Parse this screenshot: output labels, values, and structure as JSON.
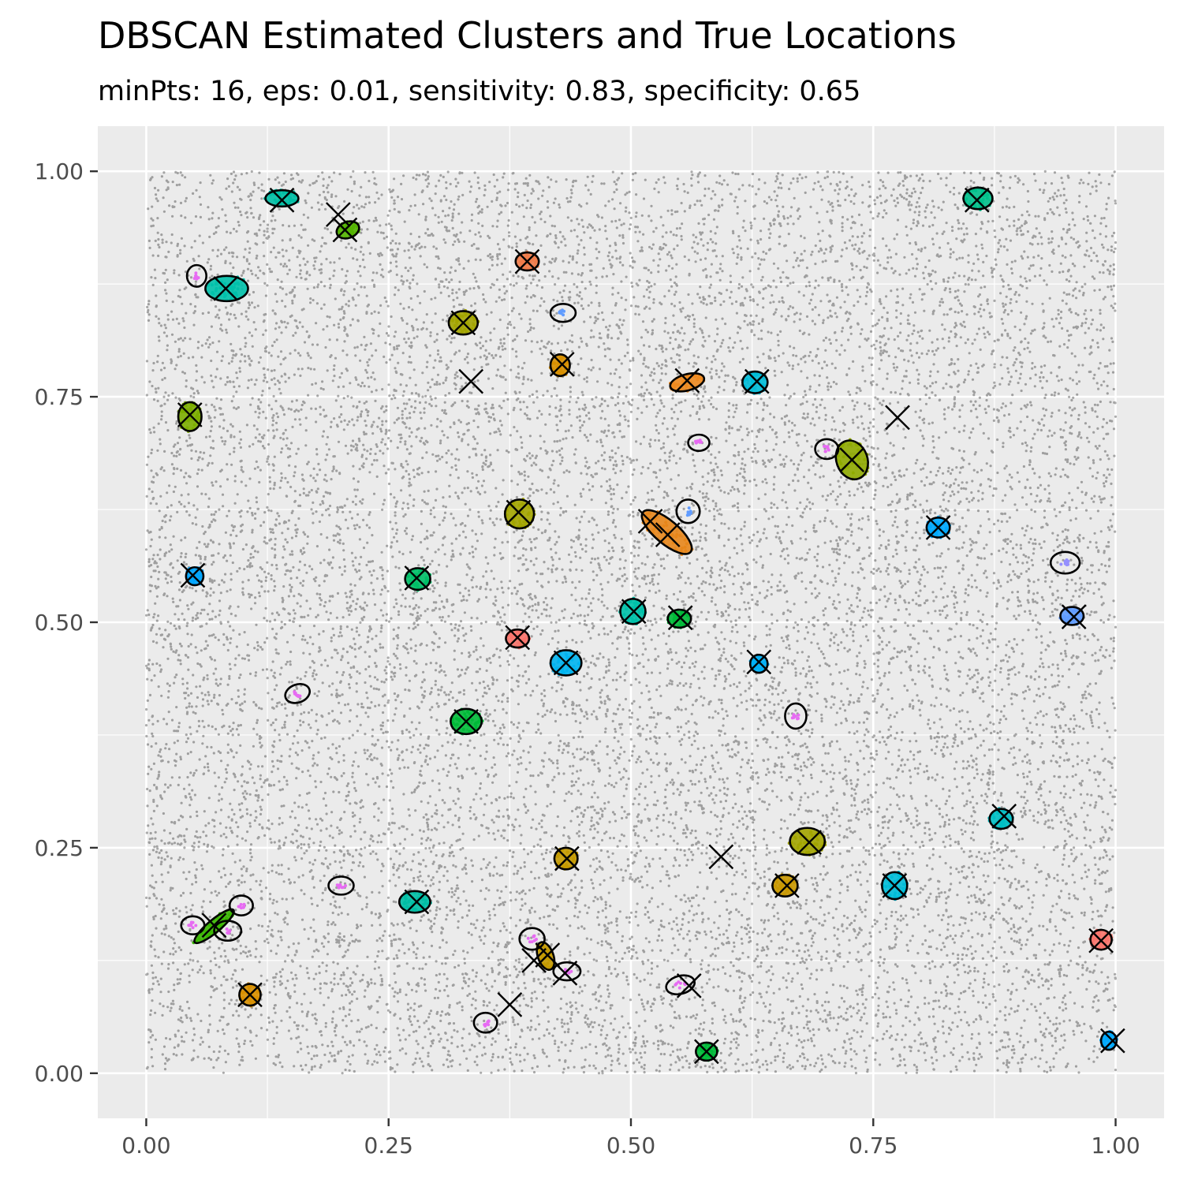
{
  "chart_data": {
    "type": "scatter",
    "title": "DBSCAN Estimated Clusters and True Locations",
    "subtitle": "minPts: 16, eps: 0.01, sensitivity: 0.83, specificity: 0.65",
    "xlabel": "",
    "ylabel": "",
    "xlim": [
      -0.05,
      1.05
    ],
    "ylim": [
      -0.05,
      1.05
    ],
    "x_ticks": [
      0,
      0.25,
      0.5,
      0.75,
      1.0
    ],
    "x_tick_labels": [
      "0.00",
      "0.25",
      "0.50",
      "0.75",
      "1.00"
    ],
    "y_ticks": [
      0,
      0.25,
      0.5,
      0.75,
      1.0
    ],
    "y_tick_labels": [
      "0.00",
      "0.25",
      "0.50",
      "0.75",
      "1.00"
    ],
    "grid": true,
    "legend": "none",
    "background_points": {
      "description": "uniform noise points",
      "x_range": [
        0,
        1
      ],
      "y_range": [
        0,
        1
      ],
      "color": "#000000"
    },
    "estimated_clusters": [
      {
        "x": 0.14,
        "y": 0.97,
        "rx": 0.017,
        "ry": 0.009,
        "angle": 0,
        "color": "#00BFA5"
      },
      {
        "x": 0.208,
        "y": 0.935,
        "rx": 0.012,
        "ry": 0.009,
        "angle": -20,
        "color": "#53B400"
      },
      {
        "x": 0.083,
        "y": 0.87,
        "rx": 0.022,
        "ry": 0.014,
        "angle": 0,
        "color": "#00C1AA"
      },
      {
        "x": 0.393,
        "y": 0.9,
        "rx": 0.012,
        "ry": 0.01,
        "angle": 0,
        "color": "#F17C4A"
      },
      {
        "x": 0.327,
        "y": 0.832,
        "rx": 0.015,
        "ry": 0.013,
        "angle": 0,
        "color": "#A3A500"
      },
      {
        "x": 0.427,
        "y": 0.785,
        "rx": 0.01,
        "ry": 0.012,
        "angle": 0,
        "color": "#D89000"
      },
      {
        "x": 0.558,
        "y": 0.766,
        "rx": 0.018,
        "ry": 0.009,
        "angle": -15,
        "color": "#EE8A1F"
      },
      {
        "x": 0.628,
        "y": 0.766,
        "rx": 0.013,
        "ry": 0.012,
        "angle": 0,
        "color": "#00BCD8"
      },
      {
        "x": 0.858,
        "y": 0.97,
        "rx": 0.015,
        "ry": 0.012,
        "angle": 0,
        "color": "#00C08B"
      },
      {
        "x": 0.045,
        "y": 0.728,
        "rx": 0.012,
        "ry": 0.016,
        "angle": 0,
        "color": "#7CAE00"
      },
      {
        "x": 0.728,
        "y": 0.68,
        "rx": 0.016,
        "ry": 0.022,
        "angle": -20,
        "color": "#8FAA00"
      },
      {
        "x": 0.385,
        "y": 0.62,
        "rx": 0.015,
        "ry": 0.016,
        "angle": 0,
        "color": "#A3A500"
      },
      {
        "x": 0.537,
        "y": 0.6,
        "rx": 0.032,
        "ry": 0.013,
        "angle": 40,
        "color": "#E7861B"
      },
      {
        "x": 0.817,
        "y": 0.605,
        "rx": 0.012,
        "ry": 0.011,
        "angle": 0,
        "color": "#00A9FF"
      },
      {
        "x": 0.05,
        "y": 0.551,
        "rx": 0.009,
        "ry": 0.01,
        "angle": 0,
        "color": "#00A5FF"
      },
      {
        "x": 0.28,
        "y": 0.548,
        "rx": 0.013,
        "ry": 0.012,
        "angle": 0,
        "color": "#00BE67"
      },
      {
        "x": 0.502,
        "y": 0.512,
        "rx": 0.013,
        "ry": 0.014,
        "angle": 0,
        "color": "#00C1A9"
      },
      {
        "x": 0.55,
        "y": 0.504,
        "rx": 0.012,
        "ry": 0.01,
        "angle": 0,
        "color": "#00BA38"
      },
      {
        "x": 0.955,
        "y": 0.507,
        "rx": 0.012,
        "ry": 0.01,
        "angle": 0,
        "color": "#619CFF"
      },
      {
        "x": 0.383,
        "y": 0.482,
        "rx": 0.012,
        "ry": 0.01,
        "angle": 0,
        "color": "#F8766D"
      },
      {
        "x": 0.433,
        "y": 0.455,
        "rx": 0.016,
        "ry": 0.014,
        "angle": 0,
        "color": "#00B4F0"
      },
      {
        "x": 0.632,
        "y": 0.454,
        "rx": 0.009,
        "ry": 0.01,
        "angle": 0,
        "color": "#00B0F6"
      },
      {
        "x": 0.33,
        "y": 0.39,
        "rx": 0.016,
        "ry": 0.014,
        "angle": 0,
        "color": "#00BA38"
      },
      {
        "x": 0.682,
        "y": 0.257,
        "rx": 0.018,
        "ry": 0.015,
        "angle": 0,
        "color": "#A3A500"
      },
      {
        "x": 0.433,
        "y": 0.238,
        "rx": 0.012,
        "ry": 0.012,
        "angle": 0,
        "color": "#C49A00"
      },
      {
        "x": 0.882,
        "y": 0.282,
        "rx": 0.012,
        "ry": 0.011,
        "angle": 0,
        "color": "#00BFC4"
      },
      {
        "x": 0.659,
        "y": 0.208,
        "rx": 0.013,
        "ry": 0.012,
        "angle": 0,
        "color": "#C99800"
      },
      {
        "x": 0.772,
        "y": 0.208,
        "rx": 0.013,
        "ry": 0.015,
        "angle": 0,
        "color": "#00BCD8"
      },
      {
        "x": 0.277,
        "y": 0.19,
        "rx": 0.016,
        "ry": 0.012,
        "angle": 0,
        "color": "#00BFA5"
      },
      {
        "x": 0.07,
        "y": 0.163,
        "rx": 0.026,
        "ry": 0.007,
        "angle": -40,
        "color": "#39B600"
      },
      {
        "x": 0.412,
        "y": 0.13,
        "rx": 0.008,
        "ry": 0.016,
        "angle": -20,
        "color": "#C49A00"
      },
      {
        "x": 0.985,
        "y": 0.148,
        "rx": 0.011,
        "ry": 0.011,
        "angle": 0,
        "color": "#F8766D"
      },
      {
        "x": 0.107,
        "y": 0.087,
        "rx": 0.011,
        "ry": 0.012,
        "angle": 0,
        "color": "#D89000"
      },
      {
        "x": 0.578,
        "y": 0.024,
        "rx": 0.011,
        "ry": 0.01,
        "angle": 0,
        "color": "#00BA38"
      },
      {
        "x": 0.993,
        "y": 0.036,
        "rx": 0.008,
        "ry": 0.01,
        "angle": 0,
        "color": "#00A9FF"
      }
    ],
    "unmatched_clusters": [
      {
        "x": 0.052,
        "y": 0.884,
        "rx": 0.01,
        "ry": 0.012,
        "color": "#E76BF3"
      },
      {
        "x": 0.43,
        "y": 0.843,
        "rx": 0.013,
        "ry": 0.01,
        "color": "#619CFF"
      },
      {
        "x": 0.57,
        "y": 0.699,
        "rx": 0.011,
        "ry": 0.009,
        "color": "#E76BF3"
      },
      {
        "x": 0.702,
        "y": 0.692,
        "rx": 0.012,
        "ry": 0.011,
        "color": "#E76BF3"
      },
      {
        "x": 0.559,
        "y": 0.623,
        "rx": 0.012,
        "ry": 0.013,
        "color": "#619CFF"
      },
      {
        "x": 0.948,
        "y": 0.566,
        "rx": 0.015,
        "ry": 0.012,
        "color": "#9590FF"
      },
      {
        "x": 0.156,
        "y": 0.421,
        "rx": 0.013,
        "ry": 0.01,
        "angle": -20,
        "color": "#E76BF3"
      },
      {
        "x": 0.67,
        "y": 0.396,
        "rx": 0.011,
        "ry": 0.014,
        "color": "#E76BF3"
      },
      {
        "x": 0.201,
        "y": 0.208,
        "rx": 0.013,
        "ry": 0.01,
        "color": "#E76BF3"
      },
      {
        "x": 0.098,
        "y": 0.186,
        "rx": 0.012,
        "ry": 0.011,
        "color": "#E76BF3"
      },
      {
        "x": 0.048,
        "y": 0.164,
        "rx": 0.012,
        "ry": 0.01,
        "color": "#E76BF3"
      },
      {
        "x": 0.084,
        "y": 0.158,
        "rx": 0.014,
        "ry": 0.011,
        "color": "#E76BF3"
      },
      {
        "x": 0.398,
        "y": 0.149,
        "rx": 0.013,
        "ry": 0.012,
        "color": "#E76BF3"
      },
      {
        "x": 0.434,
        "y": 0.113,
        "rx": 0.014,
        "ry": 0.01,
        "color": "#E76BF3"
      },
      {
        "x": 0.551,
        "y": 0.098,
        "rx": 0.015,
        "ry": 0.01,
        "angle": -15,
        "color": "#E76BF3"
      },
      {
        "x": 0.35,
        "y": 0.056,
        "rx": 0.012,
        "ry": 0.011,
        "color": "#E76BF3"
      }
    ],
    "true_locations": [
      {
        "x": 0.14,
        "y": 0.968
      },
      {
        "x": 0.198,
        "y": 0.952
      },
      {
        "x": 0.205,
        "y": 0.935
      },
      {
        "x": 0.082,
        "y": 0.87
      },
      {
        "x": 0.393,
        "y": 0.9
      },
      {
        "x": 0.327,
        "y": 0.832
      },
      {
        "x": 0.335,
        "y": 0.767
      },
      {
        "x": 0.429,
        "y": 0.786
      },
      {
        "x": 0.558,
        "y": 0.768
      },
      {
        "x": 0.63,
        "y": 0.767
      },
      {
        "x": 0.857,
        "y": 0.968
      },
      {
        "x": 0.045,
        "y": 0.73
      },
      {
        "x": 0.775,
        "y": 0.727
      },
      {
        "x": 0.728,
        "y": 0.68
      },
      {
        "x": 0.384,
        "y": 0.622
      },
      {
        "x": 0.52,
        "y": 0.612
      },
      {
        "x": 0.538,
        "y": 0.597
      },
      {
        "x": 0.817,
        "y": 0.605
      },
      {
        "x": 0.048,
        "y": 0.552
      },
      {
        "x": 0.279,
        "y": 0.549
      },
      {
        "x": 0.503,
        "y": 0.512
      },
      {
        "x": 0.551,
        "y": 0.505
      },
      {
        "x": 0.957,
        "y": 0.506
      },
      {
        "x": 0.383,
        "y": 0.483
      },
      {
        "x": 0.433,
        "y": 0.455
      },
      {
        "x": 0.632,
        "y": 0.456
      },
      {
        "x": 0.33,
        "y": 0.39
      },
      {
        "x": 0.593,
        "y": 0.24
      },
      {
        "x": 0.684,
        "y": 0.256
      },
      {
        "x": 0.434,
        "y": 0.238
      },
      {
        "x": 0.885,
        "y": 0.285
      },
      {
        "x": 0.661,
        "y": 0.208
      },
      {
        "x": 0.772,
        "y": 0.208
      },
      {
        "x": 0.279,
        "y": 0.19
      },
      {
        "x": 0.07,
        "y": 0.164
      },
      {
        "x": 0.4,
        "y": 0.125
      },
      {
        "x": 0.414,
        "y": 0.131
      },
      {
        "x": 0.432,
        "y": 0.111
      },
      {
        "x": 0.985,
        "y": 0.147
      },
      {
        "x": 0.375,
        "y": 0.076
      },
      {
        "x": 0.56,
        "y": 0.097
      },
      {
        "x": 0.107,
        "y": 0.087
      },
      {
        "x": 0.578,
        "y": 0.024
      },
      {
        "x": 0.997,
        "y": 0.036
      }
    ]
  }
}
